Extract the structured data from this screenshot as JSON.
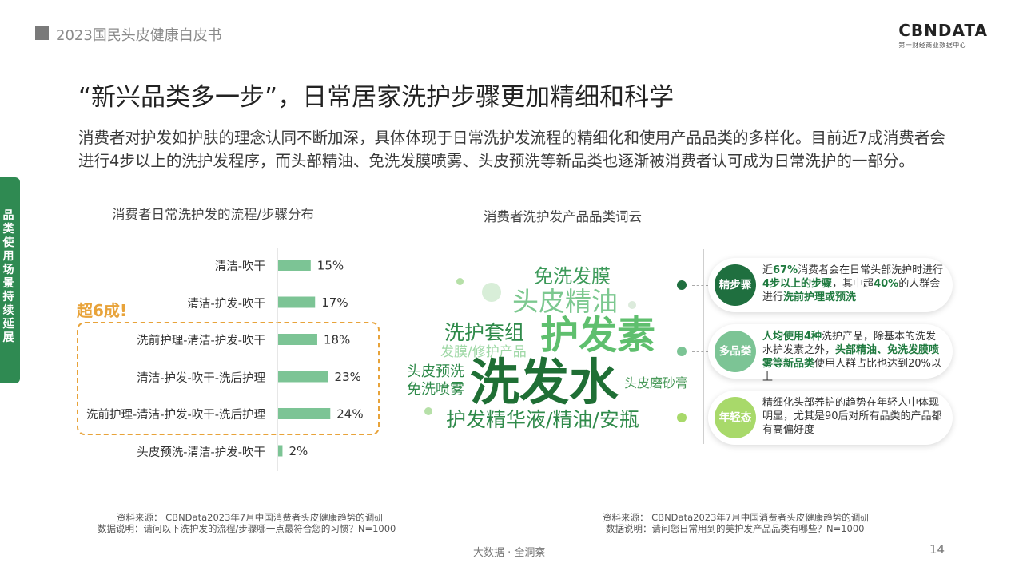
{
  "header": {
    "report_title": "2023国民头皮健康白皮书",
    "logo_main": "CBNDATA",
    "logo_sub": "第一财经商业数据中心"
  },
  "main_title": "“新兴品类多一步”，日常居家洗护步骤更加精细和科学",
  "intro": "消费者对护发如护肤的理念认同不断加深，具体体现于日常洗护发流程的精细化和使用产品品类的多样化。目前近7成消费者会进行4步以上的洗护发程序，而头部精油、免洗发膜喷雾、头皮预洗等新品类也逐渐被消费者认可成为日常洗护的一部分。",
  "side_tab": "品类使用场景持续延展",
  "left_section_title": "消费者日常洗护发的流程/步骤分布",
  "right_section_title": "消费者洗护发产品品类词云",
  "highlight_label": "超6成!",
  "chart_data": {
    "type": "bar",
    "orientation": "horizontal",
    "categories": [
      "清洁-吹干",
      "清洁-护发-吹干",
      "洗前护理-清洁-护发-吹干",
      "清洁-护发-吹干-洗后护理",
      "洗前护理-清洁-护发-吹干-洗后护理",
      "头皮预洗-清洁-护发-吹干"
    ],
    "values": [
      15,
      17,
      18,
      23,
      24,
      2
    ],
    "value_labels": [
      "15%",
      "17%",
      "18%",
      "23%",
      "24%",
      "2%"
    ],
    "unit": "%",
    "bar_color": "#7cc495",
    "xlim": [
      0,
      100
    ],
    "grid": false
  },
  "word_cloud": [
    {
      "text": "免洗发膜",
      "color": "#3d9a5a"
    },
    {
      "text": "头皮精油",
      "color": "#7cc88f"
    },
    {
      "text": "洗护套组",
      "color": "#2f8a4a"
    },
    {
      "text": "护发素",
      "color": "#5fbf6e"
    },
    {
      "text": "发膜/修护产品",
      "color": "#9fd8a6"
    },
    {
      "text": "头皮预洗",
      "color": "#2f8a4a"
    },
    {
      "text": "免洗喷雾",
      "color": "#2f8a4a"
    },
    {
      "text": "洗发水",
      "color": "#1f6f35"
    },
    {
      "text": "头皮磨砂膏",
      "color": "#4a9a5a"
    },
    {
      "text": "护发精华液/精油/安瓶",
      "color": "#2f8a4a"
    }
  ],
  "cards": [
    {
      "badge": "精步骤",
      "badge_color": "#1f6f3f",
      "marker_color": "#1f6f3f",
      "parts": [
        {
          "t": "近"
        },
        {
          "t": "67%",
          "b": true
        },
        {
          "t": "消费者会在日常头部洗护时进行"
        },
        {
          "t": "4步以上的步骤",
          "b": true
        },
        {
          "t": "，其中超"
        },
        {
          "t": "40%",
          "b": true
        },
        {
          "t": "的人群会进行"
        },
        {
          "t": "洗前护理或预洗",
          "b": true
        }
      ]
    },
    {
      "badge": "多品类",
      "badge_color": "#7cc495",
      "marker_color": "#7cc495",
      "parts": [
        {
          "t": "人均使用4种",
          "b": true
        },
        {
          "t": "洗护产品，除基本的洗发水护发素之外，"
        },
        {
          "t": "头部精油、免洗发膜喷雾等新品类",
          "b": true
        },
        {
          "t": "使用人群占比也达到20%以上"
        }
      ]
    },
    {
      "badge": "年轻态",
      "badge_color": "#a8d96a",
      "marker_color": "#a8d96a",
      "parts": [
        {
          "t": "精细化头部养护的趋势在年轻人中体现明显，尤其是90后对所有品类的产品都有高偏好度"
        }
      ]
    }
  ],
  "footer": {
    "left_source": "资料来源：  CBNData2023年7月中国消费者头皮健康趋势的调研",
    "left_note": "数据说明：请问以下洗护发的流程/步骤哪一点最符合您的习惯？N=1000",
    "right_source": "资料来源：  CBNData2023年7月中国消费者头皮健康趋势的调研",
    "right_note": "数据说明：请问您日常用到的美护发产品品类有哪些？N=1000",
    "center": "大数据 · 全洞察",
    "page": "14"
  }
}
